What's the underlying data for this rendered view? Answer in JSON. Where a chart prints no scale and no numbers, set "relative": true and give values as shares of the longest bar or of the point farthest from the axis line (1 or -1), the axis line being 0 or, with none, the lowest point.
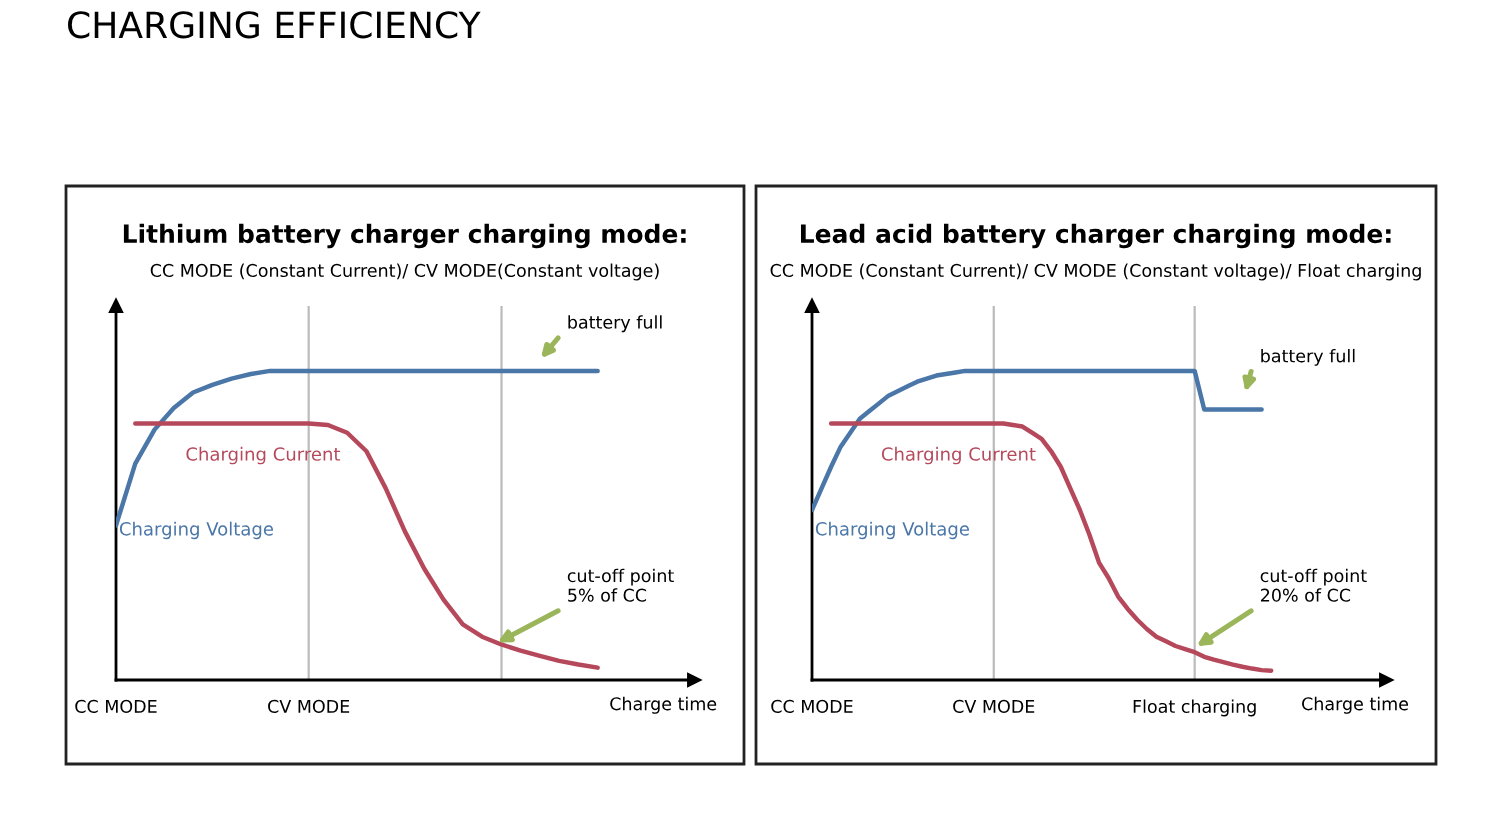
{
  "chart_data": [
    {
      "type": "line",
      "title": "Lithium battery charger charging mode:",
      "subtitle": "CC MODE (Constant Current)/ CV MODE(Constant voltage)",
      "xlabel": "Charge time",
      "relative": true,
      "categories": [
        "CC MODE",
        null,
        null,
        null,
        null,
        null,
        null,
        null,
        null,
        null,
        "CV MODE",
        null,
        null,
        null,
        null,
        null,
        null,
        null,
        null,
        null,
        null,
        null,
        null,
        null,
        null,
        null,
        null,
        null,
        null,
        null,
        null
      ],
      "series": [
        {
          "name": "Charging Voltage",
          "color": "#4a76a8",
          "values": [
            0.5,
            0.7,
            0.81,
            0.88,
            0.93,
            0.955,
            0.975,
            0.99,
            1.0,
            1.0,
            1.0,
            1.0,
            1.0,
            1.0,
            1.0,
            1.0,
            1.0,
            1.0,
            1.0,
            1.0,
            1.0,
            1.0,
            1.0,
            1.0,
            1.0,
            1.0,
            null,
            null,
            null,
            null,
            null
          ]
        },
        {
          "name": "Charging Current",
          "color": "#b5495b",
          "values": [
            null,
            0.83,
            0.83,
            0.83,
            0.83,
            0.83,
            0.83,
            0.83,
            0.83,
            0.83,
            0.83,
            0.825,
            0.8,
            0.74,
            0.62,
            0.48,
            0.36,
            0.26,
            0.18,
            0.14,
            0.115,
            0.095,
            0.078,
            0.062,
            0.05,
            0.04,
            null,
            null,
            null,
            null,
            null
          ]
        }
      ],
      "annotations": [
        "CHARGING EFFICIENCY",
        "battery full",
        "cut-off point\n5% of CC"
      ],
      "legend": false,
      "grid": "x"
    },
    {
      "type": "line",
      "title": "Lead acid battery charger charging mode:",
      "subtitle": "CC MODE (Constant Current)/ CV MODE (Constant voltage)/ Float charging",
      "xlabel": "Charge time",
      "relative": true,
      "categories": [
        "CC MODE",
        null,
        null,
        null,
        null,
        null,
        null,
        null,
        null,
        null,
        null,
        null,
        null,
        null,
        null,
        null,
        null,
        null,
        null,
        "CV MODE",
        null,
        null,
        null,
        null,
        null,
        null,
        null,
        null,
        null,
        null,
        null,
        null,
        null,
        null,
        null,
        null,
        null,
        null,
        null,
        null,
        "Float charging",
        null,
        null,
        null,
        null,
        null,
        null,
        null,
        null,
        null,
        null,
        null,
        null,
        null,
        null,
        null,
        null,
        null,
        null,
        null,
        null
      ],
      "series": [
        {
          "name": "Charging Voltage",
          "color": "#4a76a8",
          "values": [
            0.55,
            0.62,
            0.69,
            0.755,
            0.8,
            0.845,
            0.87,
            0.895,
            0.92,
            0.935,
            0.95,
            0.965,
            0.975,
            0.985,
            0.99,
            0.995,
            1.0,
            1.0,
            1.0,
            1.0,
            1.0,
            1.0,
            1.0,
            1.0,
            1.0,
            1.0,
            1.0,
            1.0,
            1.0,
            1.0,
            1.0,
            1.0,
            1.0,
            1.0,
            1.0,
            1.0,
            1.0,
            1.0,
            1.0,
            1.0,
            1.0,
            0.875,
            0.875,
            0.875,
            0.875,
            0.875,
            0.875,
            0.875,
            null,
            null,
            null,
            null,
            null,
            null,
            null,
            null,
            null,
            null,
            null,
            null,
            null
          ]
        },
        {
          "name": "Charging Current",
          "color": "#b5495b",
          "values": [
            null,
            null,
            0.83,
            0.83,
            0.83,
            0.83,
            0.83,
            0.83,
            0.83,
            0.83,
            0.83,
            0.83,
            0.83,
            0.83,
            0.83,
            0.83,
            0.83,
            0.83,
            0.83,
            0.83,
            0.83,
            0.825,
            0.82,
            0.8,
            0.78,
            0.74,
            0.69,
            0.62,
            0.55,
            0.47,
            0.38,
            0.33,
            0.27,
            0.23,
            0.195,
            0.165,
            0.14,
            0.125,
            0.11,
            0.1,
            0.09,
            0.075,
            0.066,
            0.058,
            0.05,
            0.043,
            0.037,
            0.032,
            0.03,
            null,
            null,
            null,
            null,
            null,
            null,
            null,
            null,
            null,
            null,
            null,
            null
          ]
        }
      ],
      "annotations": [
        "battery full",
        "cut-off point\n20% of CC"
      ],
      "legend": false,
      "grid": "x"
    }
  ]
}
